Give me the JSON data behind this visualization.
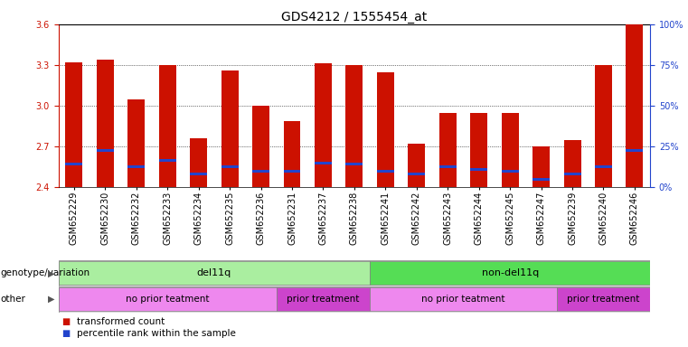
{
  "title": "GDS4212 / 1555454_at",
  "samples": [
    "GSM652229",
    "GSM652230",
    "GSM652232",
    "GSM652233",
    "GSM652234",
    "GSM652235",
    "GSM652236",
    "GSM652231",
    "GSM652237",
    "GSM652238",
    "GSM652241",
    "GSM652242",
    "GSM652243",
    "GSM652244",
    "GSM652245",
    "GSM652247",
    "GSM652239",
    "GSM652240",
    "GSM652246"
  ],
  "transformed_counts": [
    3.32,
    3.34,
    3.05,
    3.3,
    2.76,
    3.26,
    3.0,
    2.89,
    3.31,
    3.3,
    3.25,
    2.72,
    2.95,
    2.95,
    2.95,
    2.7,
    2.75,
    3.3,
    3.6
  ],
  "percentile_ranks": [
    2.57,
    2.67,
    2.55,
    2.6,
    2.5,
    2.55,
    2.52,
    2.52,
    2.58,
    2.57,
    2.52,
    2.5,
    2.55,
    2.53,
    2.52,
    2.46,
    2.5,
    2.55,
    2.67
  ],
  "ymin": 2.4,
  "ymax": 3.6,
  "yticks": [
    2.4,
    2.7,
    3.0,
    3.3,
    3.6
  ],
  "right_yticks": [
    0,
    25,
    50,
    75,
    100
  ],
  "bar_color": "#cc1100",
  "percentile_color": "#2244cc",
  "background_color": "#ffffff",
  "groups": [
    {
      "label": "del11q",
      "start": 0,
      "end": 10,
      "color": "#aaeea0"
    },
    {
      "label": "non-del11q",
      "start": 10,
      "end": 19,
      "color": "#55dd55"
    }
  ],
  "treatments": [
    {
      "label": "no prior teatment",
      "start": 0,
      "end": 7,
      "color": "#ee88ee"
    },
    {
      "label": "prior treatment",
      "start": 7,
      "end": 10,
      "color": "#cc44cc"
    },
    {
      "label": "no prior teatment",
      "start": 10,
      "end": 16,
      "color": "#ee88ee"
    },
    {
      "label": "prior treatment",
      "start": 16,
      "end": 19,
      "color": "#cc44cc"
    }
  ],
  "genotype_label": "genotype/variation",
  "other_label": "other",
  "legend_items": [
    {
      "label": "transformed count",
      "color": "#cc1100"
    },
    {
      "label": "percentile rank within the sample",
      "color": "#2244cc"
    }
  ],
  "title_fontsize": 10,
  "tick_fontsize": 7,
  "bar_width": 0.55
}
